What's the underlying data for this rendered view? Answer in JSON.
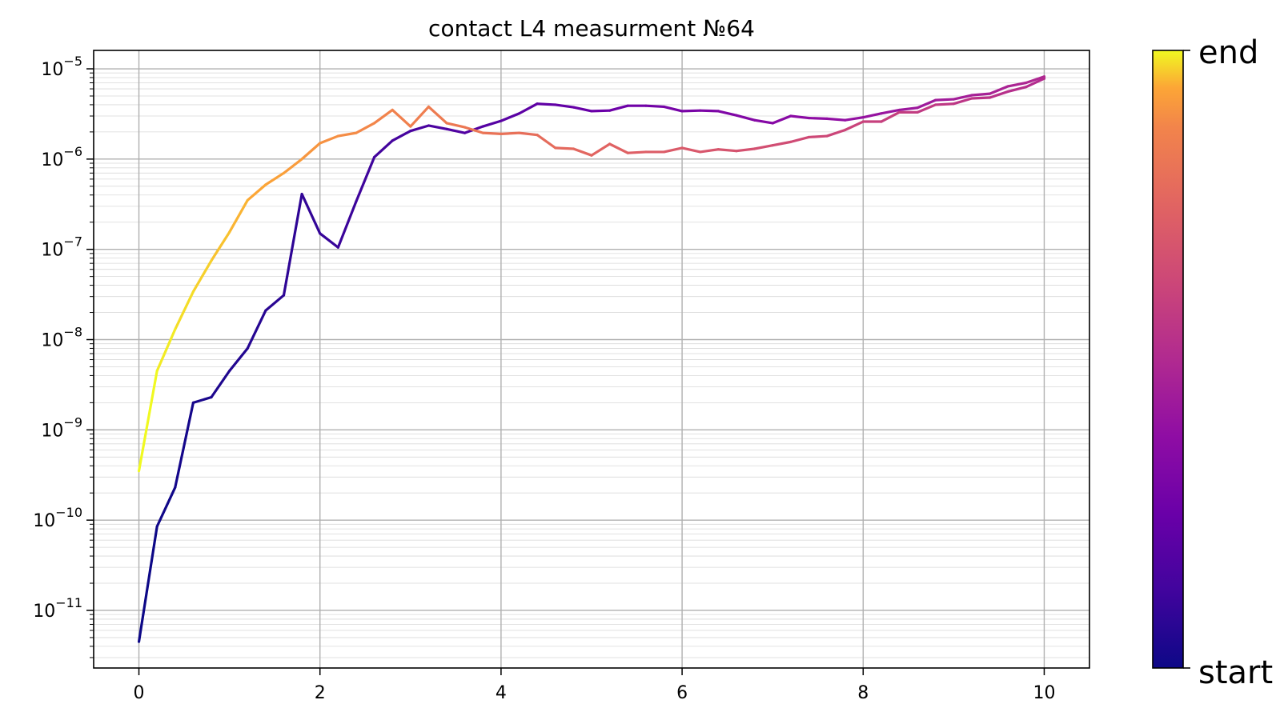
{
  "chart_data": {
    "type": "line",
    "title": "contact L4 measurment №64",
    "xlabel": "",
    "ylabel": "",
    "xlim": [
      -0.5,
      10.5
    ],
    "ylim": [
      2.3e-12,
      1.6e-05
    ],
    "yscale": "log",
    "x_ticks": [
      "0",
      "2",
      "4",
      "6",
      "8",
      "10"
    ],
    "y_ticks": [
      {
        "base": "10",
        "exp": "−5"
      },
      {
        "base": "10",
        "exp": "−6"
      },
      {
        "base": "10",
        "exp": "−7"
      },
      {
        "base": "10",
        "exp": "−8"
      },
      {
        "base": "10",
        "exp": "−9"
      },
      {
        "base": "10",
        "exp": "−10"
      },
      {
        "base": "10",
        "exp": "−11"
      }
    ],
    "grid": true,
    "colormap": "plasma",
    "colorbar": {
      "top_label": "end",
      "bottom_label": "start"
    },
    "series": [
      {
        "role": "sweep-up",
        "x": [
          0,
          0.2,
          0.4,
          0.6,
          0.8,
          1.0,
          1.2,
          1.4,
          1.6,
          1.8,
          2.0,
          2.2,
          2.4,
          2.6,
          2.8,
          3.0,
          3.2,
          3.4,
          3.6,
          3.8,
          4.0,
          4.2,
          4.4,
          4.6,
          4.8,
          5.0,
          5.2,
          5.4,
          5.6,
          5.8,
          6.0,
          6.2,
          6.4,
          6.6,
          6.8,
          7.0,
          7.2,
          7.4,
          7.6,
          7.8,
          8.0,
          8.2,
          8.4,
          8.6,
          8.8,
          9.0,
          9.2,
          9.4,
          9.6,
          9.8,
          10.0
        ],
        "y": [
          4.5e-12,
          8.5e-11,
          2.3e-10,
          2e-09,
          2.3e-09,
          4.5e-09,
          8e-09,
          2.1e-08,
          3.1e-08,
          4.1e-07,
          1.5e-07,
          1.05e-07,
          3.4e-07,
          1.05e-06,
          1.6e-06,
          2.05e-06,
          2.35e-06,
          2.15e-06,
          1.95e-06,
          2.3e-06,
          2.65e-06,
          3.2e-06,
          4.1e-06,
          4e-06,
          3.75e-06,
          3.4e-06,
          3.45e-06,
          3.9e-06,
          3.9e-06,
          3.8e-06,
          3.4e-06,
          3.45e-06,
          3.4e-06,
          3.05e-06,
          2.7e-06,
          2.5e-06,
          3e-06,
          2.85e-06,
          2.8e-06,
          2.7e-06,
          2.9e-06,
          3.2e-06,
          3.5e-06,
          3.7e-06,
          4.5e-06,
          4.6e-06,
          5.1e-06,
          5.3e-06,
          6.4e-06,
          7e-06,
          8.2e-06
        ]
      },
      {
        "role": "sweep-down",
        "x": [
          10.0,
          9.8,
          9.6,
          9.4,
          9.2,
          9.0,
          8.8,
          8.6,
          8.4,
          8.2,
          8.0,
          7.8,
          7.6,
          7.4,
          7.2,
          7.0,
          6.8,
          6.6,
          6.4,
          6.2,
          6.0,
          5.8,
          5.6,
          5.4,
          5.2,
          5.0,
          4.8,
          4.6,
          4.4,
          4.2,
          4.0,
          3.8,
          3.6,
          3.4,
          3.2,
          3.0,
          2.8,
          2.6,
          2.4,
          2.2,
          2.0,
          1.8,
          1.6,
          1.4,
          1.2,
          1.0,
          0.8,
          0.6,
          0.4,
          0.2,
          0
        ],
        "y": [
          7.8e-06,
          6.3e-06,
          5.6e-06,
          4.8e-06,
          4.7e-06,
          4.1e-06,
          4e-06,
          3.3e-06,
          3.3e-06,
          2.6e-06,
          2.6e-06,
          2.1e-06,
          1.8e-06,
          1.75e-06,
          1.55e-06,
          1.42e-06,
          1.3e-06,
          1.23e-06,
          1.28e-06,
          1.2e-06,
          1.33e-06,
          1.2e-06,
          1.2e-06,
          1.17e-06,
          1.47e-06,
          1.1e-06,
          1.3e-06,
          1.33e-06,
          1.85e-06,
          1.95e-06,
          1.9e-06,
          1.95e-06,
          2.25e-06,
          2.5e-06,
          3.8e-06,
          2.3e-06,
          3.5e-06,
          2.5e-06,
          1.95e-06,
          1.8e-06,
          1.5e-06,
          1e-06,
          7e-07,
          5.2e-07,
          3.5e-07,
          1.55e-07,
          7.5e-08,
          3.4e-08,
          1.3e-08,
          4.5e-09,
          3.5e-10
        ]
      }
    ]
  }
}
